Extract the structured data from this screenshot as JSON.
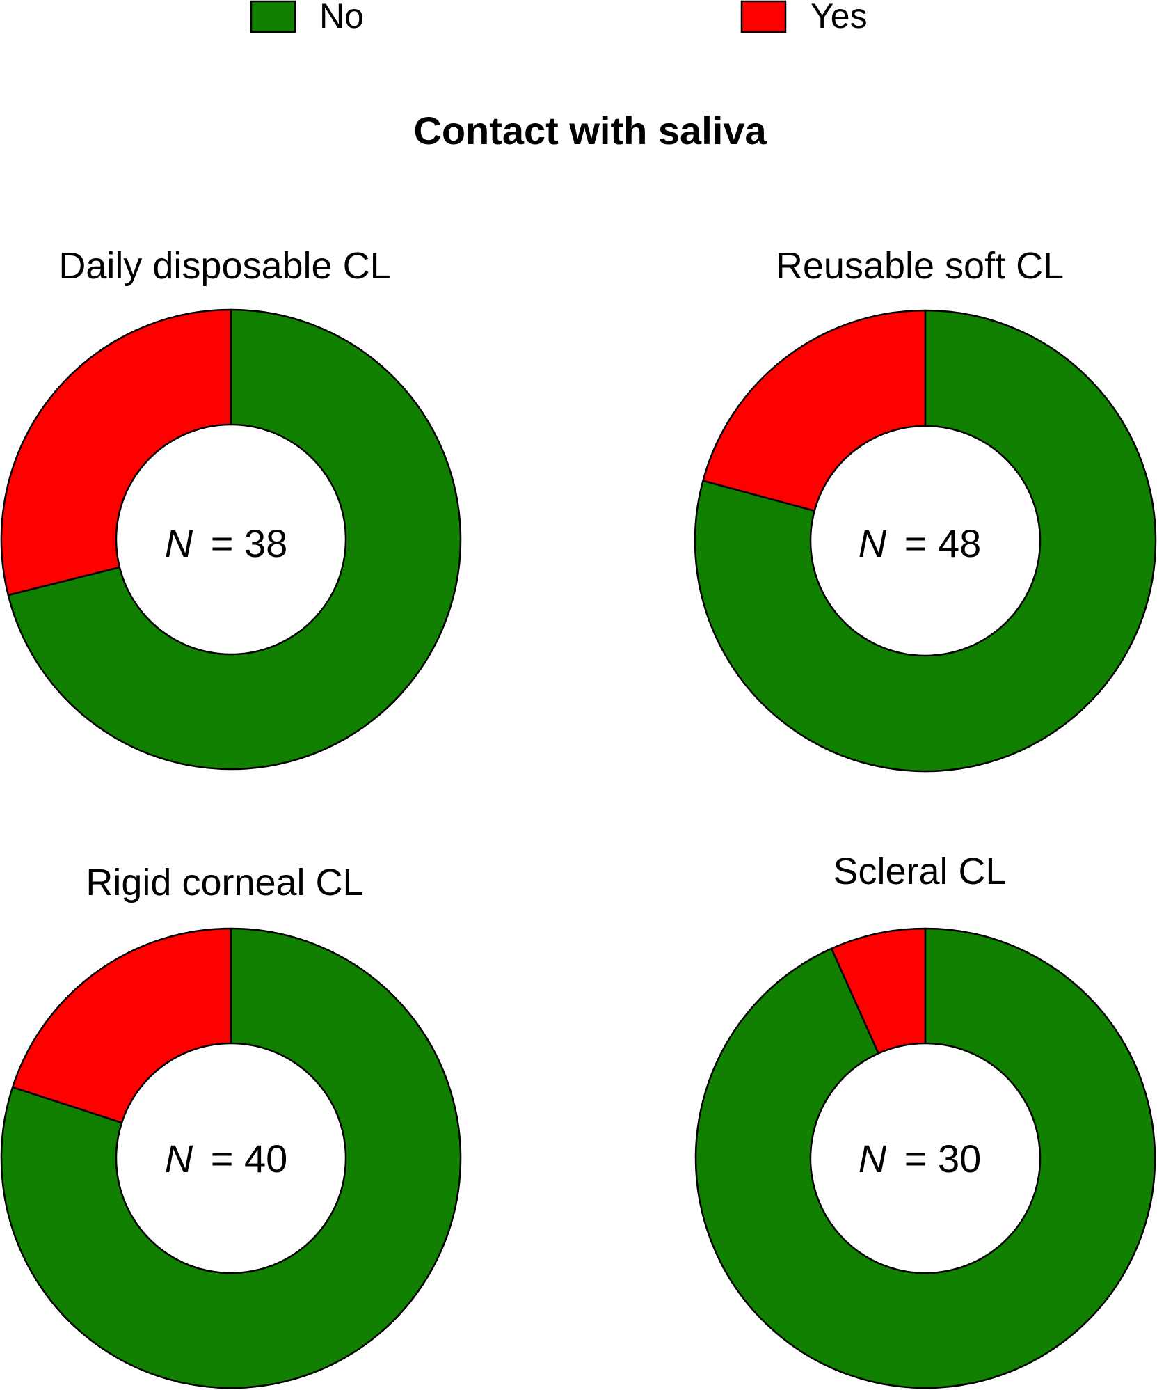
{
  "title": "Contact with saliva",
  "legend": {
    "position": "top",
    "items": [
      {
        "label": "No",
        "color": "#117f00"
      },
      {
        "label": "Yes",
        "color": "#ff0000"
      }
    ]
  },
  "chart_data": [
    {
      "type": "pie",
      "title": "Daily disposable CL",
      "n_label": "N",
      "n_value": "= 38",
      "labels": [
        "Yes",
        "No"
      ],
      "values": [
        28.9,
        71.1
      ],
      "colors": [
        "#ff0000",
        "#117f00"
      ]
    },
    {
      "type": "pie",
      "title": "Reusable soft CL",
      "n_label": "N",
      "n_value": "= 48",
      "labels": [
        "Yes",
        "No"
      ],
      "values": [
        20.8,
        79.2
      ],
      "colors": [
        "#ff0000",
        "#117f00"
      ]
    },
    {
      "type": "pie",
      "title": "Rigid corneal CL",
      "n_label": "N",
      "n_value": "= 40",
      "labels": [
        "Yes",
        "No"
      ],
      "values": [
        20.0,
        80.0
      ],
      "colors": [
        "#ff0000",
        "#117f00"
      ]
    },
    {
      "type": "pie",
      "title": "Scleral CL",
      "n_label": "N",
      "n_value": "= 30",
      "labels": [
        "Yes",
        "No"
      ],
      "values": [
        6.7,
        93.3
      ],
      "colors": [
        "#ff0000",
        "#117f00"
      ]
    }
  ]
}
